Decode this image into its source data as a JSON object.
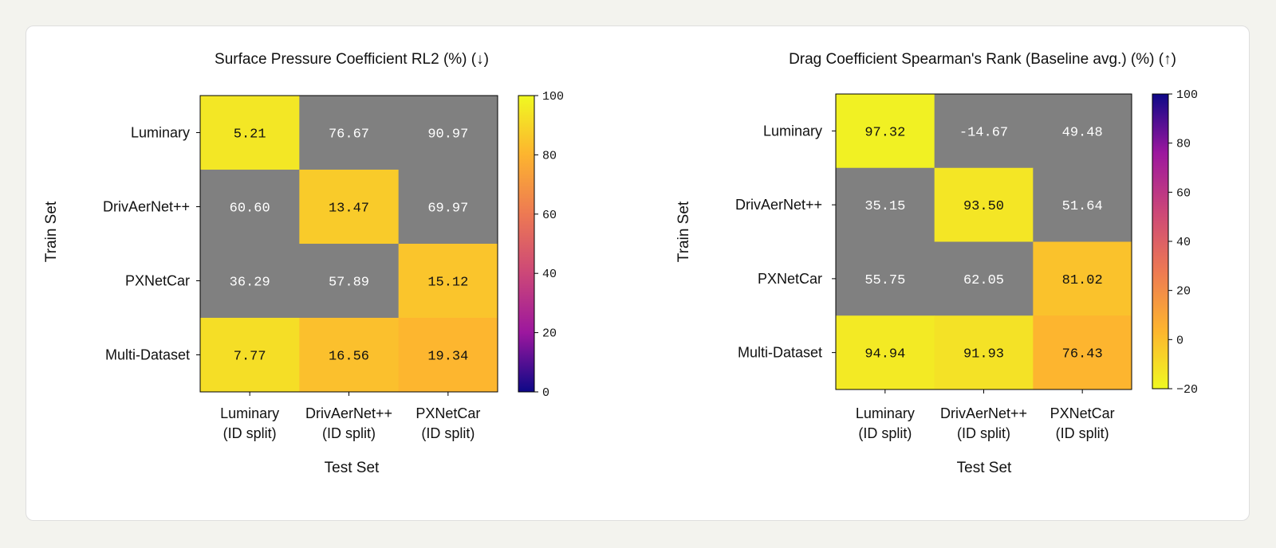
{
  "chart_data": [
    {
      "type": "heatmap",
      "title": "Surface Pressure Coefficient RL2 (%) (↓)",
      "xlabel": "Test Set",
      "ylabel": "Train Set",
      "rows": [
        "Luminary",
        "DrivAerNet++",
        "PXNetCar",
        "Multi-Dataset"
      ],
      "cols": [
        [
          "Luminary",
          "(ID split)"
        ],
        [
          "DrivAerNet++",
          "(ID split)"
        ],
        [
          "PXNetCar",
          "(ID split)"
        ]
      ],
      "values": [
        [
          "5.21",
          "76.67",
          "90.97"
        ],
        [
          "60.60",
          "13.47",
          "69.97"
        ],
        [
          "36.29",
          "57.89",
          "15.12"
        ],
        [
          "7.77",
          "16.56",
          "19.34"
        ]
      ],
      "grey_cells": [
        [
          false,
          true,
          true
        ],
        [
          true,
          false,
          true
        ],
        [
          true,
          true,
          false
        ],
        [
          false,
          false,
          false
        ]
      ],
      "colorbar": {
        "min": 0,
        "max": 100,
        "ticks": [
          "0",
          "20",
          "40",
          "60",
          "80",
          "100"
        ],
        "colormap": "plasma",
        "direction": "reversed"
      }
    },
    {
      "type": "heatmap",
      "title": "Drag Coefficient Spearman's Rank (Baseline avg.) (%)  (↑)",
      "xlabel": "Test Set",
      "ylabel": "Train Set",
      "rows": [
        "Luminary",
        "DrivAerNet++",
        "PXNetCar",
        "Multi-Dataset"
      ],
      "cols": [
        [
          "Luminary",
          "(ID split)"
        ],
        [
          "DrivAerNet++",
          "(ID split)"
        ],
        [
          "PXNetCar",
          "(ID split)"
        ]
      ],
      "values": [
        [
          "97.32",
          "-14.67",
          "49.48"
        ],
        [
          "35.15",
          "93.50",
          "51.64"
        ],
        [
          "55.75",
          "62.05",
          "81.02"
        ],
        [
          "94.94",
          "91.93",
          "76.43"
        ]
      ],
      "grey_cells": [
        [
          false,
          true,
          true
        ],
        [
          true,
          false,
          true
        ],
        [
          true,
          true,
          false
        ],
        [
          false,
          false,
          false
        ]
      ],
      "colorbar": {
        "min": -20,
        "max": 100,
        "ticks": [
          "−20",
          "0",
          "20",
          "40",
          "60",
          "80",
          "100"
        ],
        "colormap": "plasma",
        "direction": "normal"
      }
    }
  ],
  "colors": {
    "grey": "#808080",
    "background": "#f3f3ee",
    "card": "#ffffff"
  }
}
